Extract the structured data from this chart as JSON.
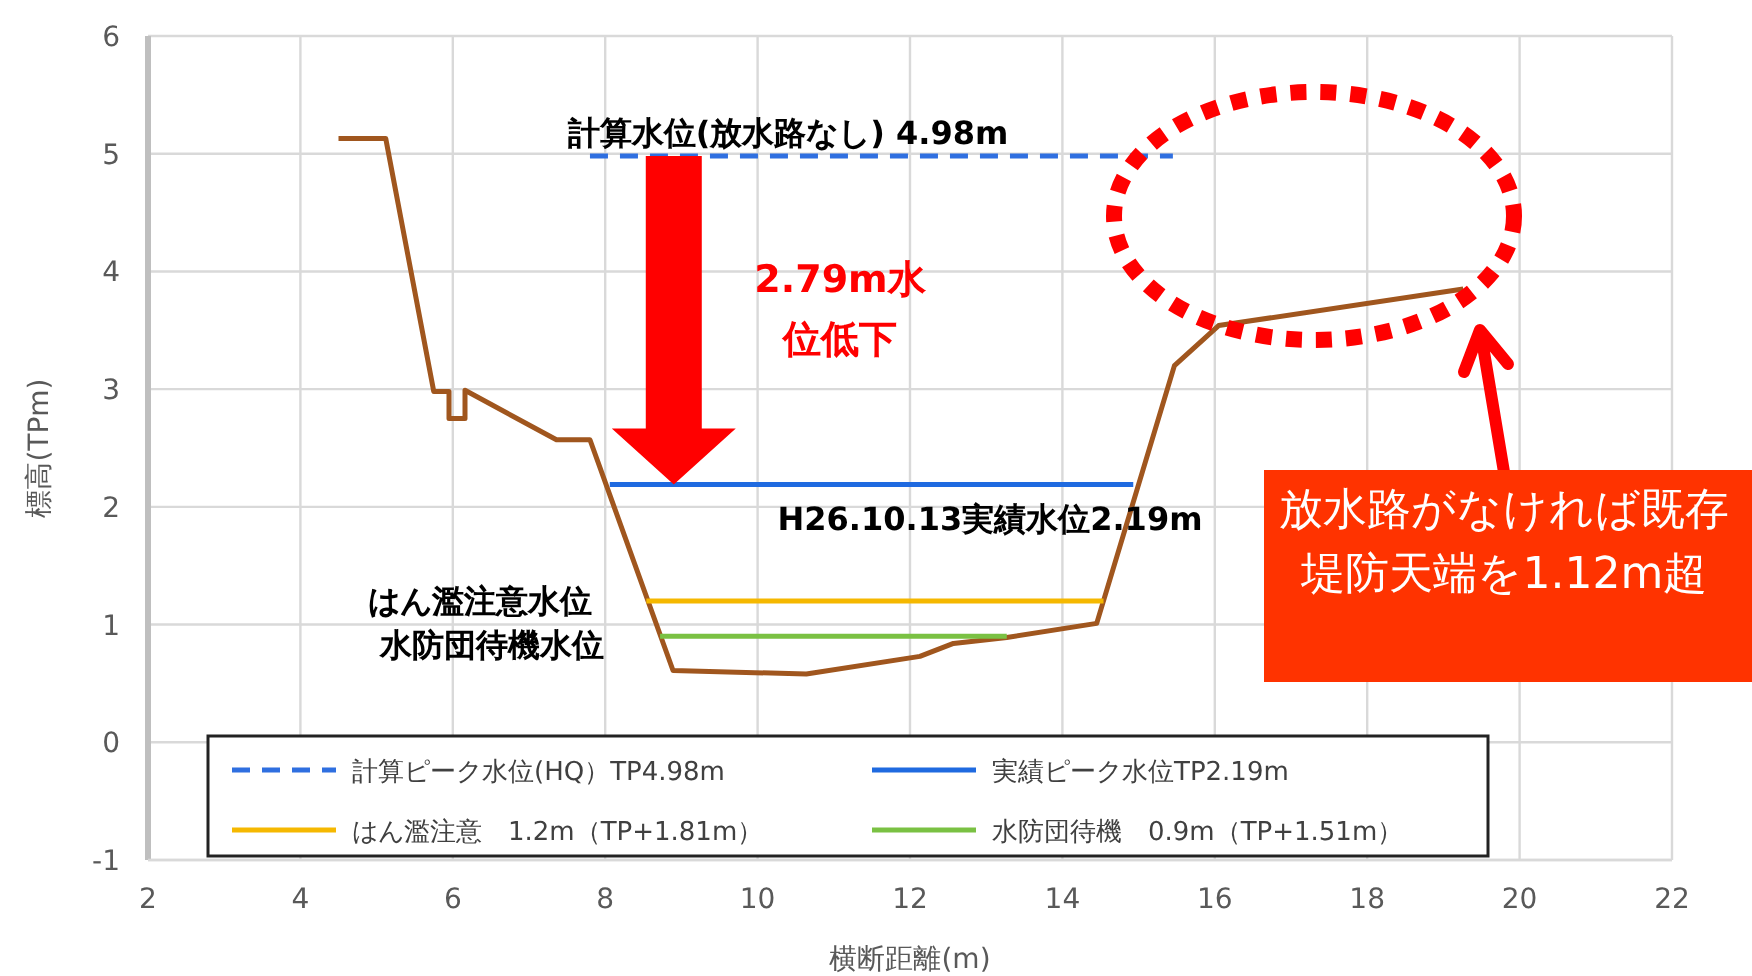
{
  "chart_data": {
    "type": "line",
    "xlabel": "横断距離(m)",
    "ylabel": "標高(TPm)",
    "xlim": [
      2,
      22
    ],
    "ylim": [
      -1,
      6
    ],
    "xticks": [
      2,
      4,
      6,
      8,
      10,
      12,
      14,
      16,
      18,
      20,
      22
    ],
    "yticks": [
      -1,
      0,
      1,
      2,
      3,
      4,
      5,
      6
    ],
    "grid": true,
    "legend": "bottom",
    "marker": "none",
    "series": [
      {
        "color": "#a0561e",
        "x": [
          4.5,
          5.12,
          5.75,
          5.95,
          5.95,
          6.16,
          6.16,
          7.36,
          7.8,
          8.89,
          10.64,
          12.13,
          12.57,
          13.27,
          14.45,
          15.47,
          16.05,
          19.26
        ],
        "values": [
          5.13,
          5.13,
          2.98,
          2.98,
          2.75,
          2.75,
          2.99,
          2.57,
          2.57,
          0.61,
          0.58,
          0.73,
          0.84,
          0.89,
          1.01,
          3.2,
          3.54,
          3.85
        ]
      },
      {
        "name": "計算ピーク水位(HQ）TP4.98m",
        "color": "#2f6fe0",
        "line_style": "dashed",
        "x": [
          7.8,
          15.45
        ],
        "values": [
          4.98,
          4.98
        ]
      },
      {
        "name": "実績ピーク水位TP2.19m",
        "color": "#1f6ae0",
        "x": [
          8.06,
          14.93
        ],
        "values": [
          2.19,
          2.19
        ]
      },
      {
        "name": "はん濫注意　1.2m（TP+1.81m）",
        "color": "#f5b800",
        "x": [
          8.54,
          14.54
        ],
        "values": [
          1.2,
          1.2
        ]
      },
      {
        "name": "水防団待機　0.9m（TP+1.51m）",
        "color": "#7ac143",
        "x": [
          8.72,
          13.27
        ],
        "values": [
          0.9,
          0.9
        ]
      }
    ],
    "annotations": [
      "計算水位(放水路なし) 4.98m",
      "H26.10.13実績水位2.19m",
      "はん濫注意水位",
      "水防団待機水位",
      "2.79m水位低下",
      "放水路がなければ既存堤防天端を1.12m超"
    ]
  }
}
